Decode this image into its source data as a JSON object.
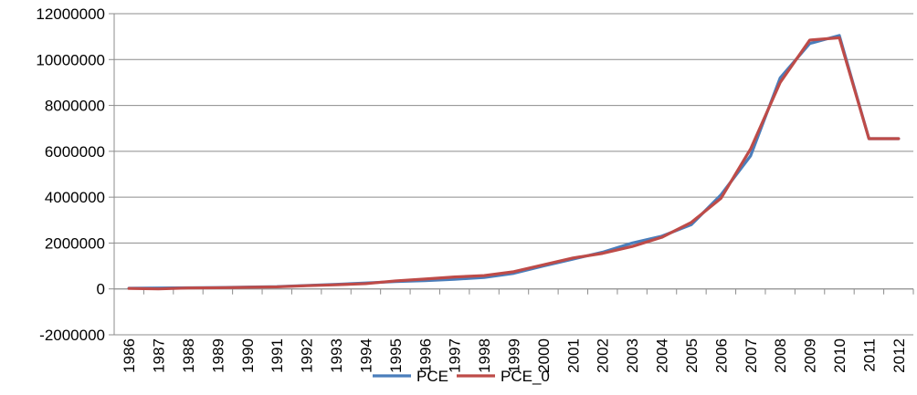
{
  "chart_data": {
    "type": "line",
    "title": "",
    "xlabel": "",
    "ylabel": "",
    "categories": [
      "1986",
      "1987",
      "1988",
      "1989",
      "1990",
      "1991",
      "1992",
      "1993",
      "1994",
      "1995",
      "1996",
      "1997",
      "1998",
      "1999",
      "2000",
      "2001",
      "2002",
      "2003",
      "2004",
      "2005",
      "2006",
      "2007",
      "2008",
      "2009",
      "2010",
      "2011",
      "2012"
    ],
    "ylim": [
      -2000000,
      12000000
    ],
    "yticks": [
      -2000000,
      0,
      2000000,
      4000000,
      6000000,
      8000000,
      10000000,
      12000000
    ],
    "ytick_labels": [
      "-2000000",
      "0",
      "2000000",
      "4000000",
      "6000000",
      "8000000",
      "10000000",
      "12000000"
    ],
    "grid": true,
    "legend_position": "bottom",
    "series": [
      {
        "name": "PCE",
        "color": "#4A7EBB",
        "values": [
          30000,
          40000,
          50000,
          60000,
          80000,
          100000,
          150000,
          200000,
          260000,
          320000,
          360000,
          420000,
          500000,
          680000,
          1000000,
          1300000,
          1600000,
          2000000,
          2300000,
          2800000,
          4100000,
          5800000,
          9200000,
          10700000,
          11050000,
          6550000,
          6550000
        ]
      },
      {
        "name": "PCE_0",
        "color": "#BE4B48",
        "values": [
          20000,
          0,
          40000,
          50000,
          70000,
          90000,
          140000,
          180000,
          230000,
          350000,
          430000,
          520000,
          580000,
          750000,
          1050000,
          1350000,
          1550000,
          1850000,
          2250000,
          2900000,
          3950000,
          6100000,
          9000000,
          10850000,
          10950000,
          6550000,
          6550000
        ]
      }
    ]
  }
}
